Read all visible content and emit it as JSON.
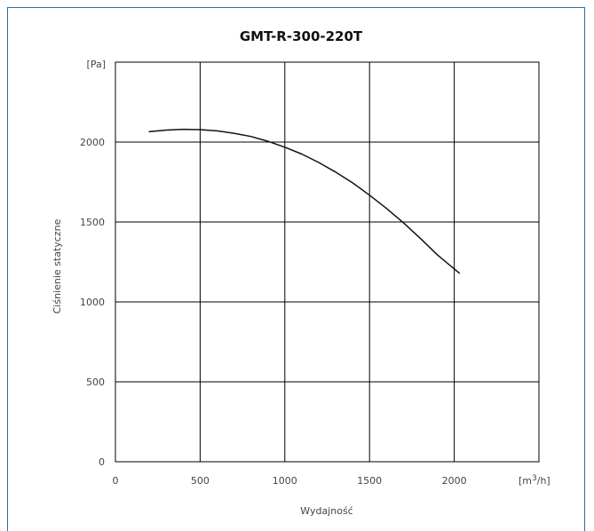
{
  "chart_data": {
    "type": "line",
    "title": "GMT-R-300-220T",
    "ylabel": "Ciśnienie statyczne",
    "xlabel": "Wydajność",
    "y_unit": "[Pa]",
    "x_unit_base": "[m",
    "x_unit_sup": "3",
    "x_unit_tail": "/h]",
    "xlim": [
      0,
      2500
    ],
    "ylim": [
      0,
      2500
    ],
    "x_ticks": [
      0,
      500,
      1000,
      1500,
      2000
    ],
    "y_ticks": [
      0,
      500,
      1000,
      1500,
      2000
    ],
    "grid": true,
    "series": [
      {
        "x": [
          200,
          300,
          400,
          500,
          600,
          700,
          800,
          900,
          1000,
          1100,
          1200,
          1300,
          1400,
          1500,
          1600,
          1700,
          1800,
          1900,
          2030
        ],
        "y": [
          2065,
          2075,
          2080,
          2078,
          2070,
          2055,
          2035,
          2005,
          1968,
          1925,
          1872,
          1812,
          1745,
          1668,
          1585,
          1495,
          1398,
          1295,
          1180
        ],
        "color": "#111111"
      }
    ]
  }
}
